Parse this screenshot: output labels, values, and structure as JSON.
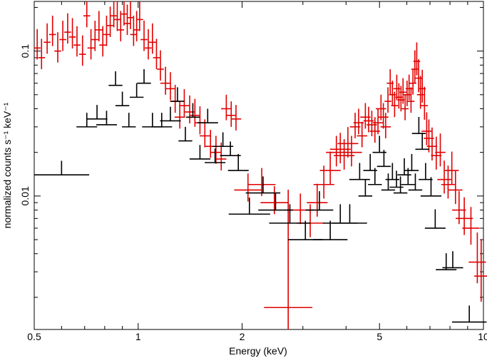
{
  "chart_data": {
    "type": "scatter",
    "title": "",
    "xlabel": "Energy (keV)",
    "ylabel": "normalized counts s⁻¹ keV⁻¹",
    "x_scale": "log",
    "y_scale": "log",
    "xlim": [
      0.5,
      10
    ],
    "ylim": [
      0.0012,
      0.22
    ],
    "grid": false,
    "legend": "none",
    "x_tick_labels": [
      {
        "value": 0.5,
        "label": "0.5"
      },
      {
        "value": 1,
        "label": "1"
      },
      {
        "value": 2,
        "label": "2"
      },
      {
        "value": 5,
        "label": "5"
      },
      {
        "value": 10,
        "label": "10"
      }
    ],
    "y_tick_labels": [
      {
        "value": 0.1,
        "label": "0.1"
      },
      {
        "value": 0.01,
        "label": "0.01"
      }
    ],
    "series": [
      {
        "color": "#e00000",
        "points": [
          [
            0.51,
            0.105,
            0.01,
            1.35,
            1.2
          ],
          [
            0.525,
            0.09,
            0.01,
            1.35,
            1.2
          ],
          [
            0.545,
            0.115,
            0.01,
            1.35,
            1.2
          ],
          [
            0.565,
            0.13,
            0.01,
            1.35,
            1.2
          ],
          [
            0.585,
            0.1,
            0.01,
            1.35,
            1.2
          ],
          [
            0.605,
            0.12,
            0.01,
            1.35,
            1.2
          ],
          [
            0.625,
            0.135,
            0.01,
            1.35,
            1.2
          ],
          [
            0.645,
            0.125,
            0.01,
            1.35,
            1.2
          ],
          [
            0.665,
            0.11,
            0.01,
            1.35,
            1.2
          ],
          [
            0.69,
            0.095,
            0.01,
            1.35,
            1.2
          ],
          [
            0.71,
            0.175,
            0.01,
            1.35,
            1.2
          ],
          [
            0.73,
            0.105,
            0.01,
            1.35,
            1.2
          ],
          [
            0.75,
            0.12,
            0.01,
            1.35,
            1.2
          ],
          [
            0.77,
            0.14,
            0.01,
            1.35,
            1.2
          ],
          [
            0.79,
            0.11,
            0.01,
            1.35,
            1.2
          ],
          [
            0.81,
            0.13,
            0.01,
            1.35,
            1.2
          ],
          [
            0.83,
            0.15,
            0.01,
            1.35,
            1.2
          ],
          [
            0.85,
            0.175,
            0.01,
            1.35,
            1.2
          ],
          [
            0.87,
            0.165,
            0.01,
            1.35,
            1.2
          ],
          [
            0.89,
            0.14,
            0.01,
            1.35,
            1.2
          ],
          [
            0.91,
            0.18,
            0.01,
            1.35,
            1.2
          ],
          [
            0.93,
            0.155,
            0.01,
            1.35,
            1.2
          ],
          [
            0.95,
            0.17,
            0.01,
            1.35,
            1.2
          ],
          [
            0.97,
            0.13,
            0.01,
            1.35,
            1.2
          ],
          [
            0.99,
            0.14,
            0.01,
            1.35,
            1.2
          ],
          [
            1.01,
            0.165,
            0.01,
            1.35,
            1.2
          ],
          [
            1.04,
            0.12,
            0.01,
            1.35,
            1.2
          ],
          [
            1.07,
            0.105,
            0.01,
            1.35,
            1.2
          ],
          [
            1.1,
            0.115,
            0.01,
            1.35,
            1.2
          ],
          [
            1.13,
            0.09,
            0.01,
            1.35,
            1.2
          ],
          [
            1.16,
            0.075,
            0.01,
            1.35,
            1.2
          ],
          [
            1.2,
            0.06,
            0.015,
            1.3,
            1.2
          ],
          [
            1.24,
            0.055,
            0.015,
            1.3,
            1.2
          ],
          [
            1.28,
            0.045,
            0.015,
            1.3,
            1.2
          ],
          [
            1.32,
            0.035,
            0.015,
            1.3,
            1.2
          ],
          [
            1.36,
            0.042,
            0.015,
            1.3,
            1.2
          ],
          [
            1.41,
            0.038,
            0.015,
            1.3,
            1.2
          ],
          [
            1.46,
            0.036,
            0.015,
            1.3,
            1.2
          ],
          [
            1.51,
            0.032,
            0.015,
            1.3,
            1.2
          ],
          [
            1.56,
            0.026,
            0.015,
            1.3,
            1.2
          ],
          [
            1.62,
            0.022,
            0.015,
            1.3,
            1.2
          ],
          [
            1.68,
            0.02,
            0.015,
            1.3,
            1.2
          ],
          [
            1.74,
            0.018,
            0.015,
            1.3,
            1.2
          ],
          [
            1.8,
            0.04,
            0.015,
            1.25,
            1.2
          ],
          [
            1.86,
            0.036,
            0.015,
            1.25,
            1.2
          ],
          [
            1.92,
            0.034,
            0.015,
            1.25,
            1.2
          ],
          [
            2.08,
            0.011,
            0.04,
            1.3,
            1.2
          ],
          [
            2.28,
            0.012,
            0.04,
            1.3,
            1.2
          ],
          [
            2.48,
            0.009,
            0.04,
            1.3,
            1.2
          ],
          [
            2.72,
            0.0017,
            0.07,
            6.5,
            1.55
          ],
          [
            2.95,
            0.008,
            0.04,
            1.3,
            1.25
          ],
          [
            3.15,
            0.0065,
            0.04,
            1.35,
            1.25
          ],
          [
            3.3,
            0.009,
            0.03,
            1.35,
            1.25
          ],
          [
            3.45,
            0.012,
            0.03,
            1.35,
            1.25
          ],
          [
            3.6,
            0.015,
            0.03,
            1.35,
            1.25
          ],
          [
            3.75,
            0.02,
            0.03,
            1.3,
            1.25
          ],
          [
            3.85,
            0.021,
            0.03,
            1.3,
            1.25
          ],
          [
            3.95,
            0.019,
            0.03,
            1.3,
            1.25
          ],
          [
            4.05,
            0.023,
            0.03,
            1.3,
            1.25
          ],
          [
            4.15,
            0.02,
            0.03,
            1.3,
            1.25
          ],
          [
            4.25,
            0.03,
            0.015,
            1.25,
            1.2
          ],
          [
            4.35,
            0.032,
            0.015,
            1.25,
            1.2
          ],
          [
            4.45,
            0.026,
            0.015,
            1.25,
            1.2
          ],
          [
            4.55,
            0.035,
            0.015,
            1.25,
            1.2
          ],
          [
            4.65,
            0.033,
            0.015,
            1.25,
            1.2
          ],
          [
            4.75,
            0.031,
            0.015,
            1.25,
            1.2
          ],
          [
            4.85,
            0.028,
            0.015,
            1.25,
            1.2
          ],
          [
            4.95,
            0.032,
            0.015,
            1.25,
            1.2
          ],
          [
            5.05,
            0.04,
            0.015,
            1.25,
            1.2
          ],
          [
            5.13,
            0.035,
            0.015,
            1.25,
            1.2
          ],
          [
            5.21,
            0.03,
            0.015,
            1.25,
            1.2
          ],
          [
            5.29,
            0.045,
            0.01,
            1.25,
            1.2
          ],
          [
            5.37,
            0.06,
            0.01,
            1.25,
            1.2
          ],
          [
            5.45,
            0.05,
            0.01,
            1.25,
            1.2
          ],
          [
            5.53,
            0.042,
            0.01,
            1.25,
            1.2
          ],
          [
            5.61,
            0.055,
            0.01,
            1.25,
            1.2
          ],
          [
            5.69,
            0.048,
            0.01,
            1.25,
            1.2
          ],
          [
            5.77,
            0.046,
            0.01,
            1.25,
            1.2
          ],
          [
            5.85,
            0.052,
            0.01,
            1.25,
            1.2
          ],
          [
            5.93,
            0.04,
            0.01,
            1.25,
            1.2
          ],
          [
            6.01,
            0.05,
            0.01,
            1.25,
            1.2
          ],
          [
            6.09,
            0.055,
            0.01,
            1.25,
            1.2
          ],
          [
            6.17,
            0.045,
            0.01,
            1.25,
            1.2
          ],
          [
            6.25,
            0.06,
            0.01,
            1.25,
            1.2
          ],
          [
            6.33,
            0.075,
            0.01,
            1.35,
            1.25
          ],
          [
            6.41,
            0.085,
            0.01,
            1.35,
            1.25
          ],
          [
            6.49,
            0.065,
            0.01,
            1.35,
            1.25
          ],
          [
            6.57,
            0.05,
            0.01,
            1.35,
            1.25
          ],
          [
            6.65,
            0.055,
            0.01,
            1.35,
            1.25
          ],
          [
            6.75,
            0.042,
            0.01,
            1.35,
            1.25
          ],
          [
            6.85,
            0.028,
            0.015,
            1.35,
            1.25
          ],
          [
            6.95,
            0.025,
            0.015,
            1.35,
            1.25
          ],
          [
            7.1,
            0.022,
            0.015,
            1.35,
            1.25
          ],
          [
            7.3,
            0.019,
            0.015,
            1.35,
            1.25
          ],
          [
            7.5,
            0.02,
            0.015,
            1.35,
            1.25
          ],
          [
            7.7,
            0.013,
            0.02,
            1.35,
            1.25
          ],
          [
            7.9,
            0.012,
            0.02,
            1.35,
            1.25
          ],
          [
            8.1,
            0.015,
            0.02,
            1.35,
            1.25
          ],
          [
            8.3,
            0.011,
            0.02,
            1.35,
            1.25
          ],
          [
            8.5,
            0.008,
            0.02,
            1.35,
            1.25
          ],
          [
            8.8,
            0.007,
            0.025,
            1.4,
            1.3
          ],
          [
            9.2,
            0.006,
            0.025,
            1.4,
            1.3
          ],
          [
            9.6,
            0.0035,
            0.025,
            1.6,
            1.4
          ],
          [
            9.85,
            0.0028,
            0.02,
            1.8,
            1.5
          ]
        ]
      },
      {
        "color": "#000000",
        "points": [
          [
            0.6,
            0.014,
            0.08,
            1.25,
            1.0
          ],
          [
            0.71,
            0.03,
            0.03,
            1.25,
            1.0
          ],
          [
            0.76,
            0.034,
            0.03,
            1.25,
            1.0
          ],
          [
            0.81,
            0.031,
            0.03,
            1.25,
            1.0
          ],
          [
            0.86,
            0.058,
            0.02,
            1.25,
            1.0
          ],
          [
            0.9,
            0.042,
            0.02,
            1.25,
            1.0
          ],
          [
            0.94,
            0.03,
            0.02,
            1.25,
            1.0
          ],
          [
            0.99,
            0.048,
            0.02,
            1.25,
            1.0
          ],
          [
            1.04,
            0.06,
            0.02,
            1.25,
            1.0
          ],
          [
            1.1,
            0.03,
            0.03,
            1.25,
            1.0
          ],
          [
            1.17,
            0.03,
            0.03,
            1.25,
            1.0
          ],
          [
            1.24,
            0.033,
            0.03,
            1.25,
            1.0
          ],
          [
            1.3,
            0.045,
            0.02,
            1.25,
            1.0
          ],
          [
            1.37,
            0.024,
            0.02,
            1.25,
            1.0
          ],
          [
            1.44,
            0.035,
            0.02,
            1.25,
            1.0
          ],
          [
            1.51,
            0.018,
            0.03,
            1.25,
            1.0
          ],
          [
            1.59,
            0.032,
            0.03,
            1.25,
            1.0
          ],
          [
            1.67,
            0.017,
            0.03,
            1.25,
            1.0
          ],
          [
            1.76,
            0.022,
            0.03,
            1.25,
            1.0
          ],
          [
            1.85,
            0.019,
            0.03,
            1.25,
            1.0
          ],
          [
            1.95,
            0.015,
            0.03,
            1.3,
            1.0
          ],
          [
            2.1,
            0.0075,
            0.06,
            1.3,
            1.0
          ],
          [
            2.3,
            0.0105,
            0.05,
            1.3,
            1.0
          ],
          [
            2.5,
            0.008,
            0.05,
            1.3,
            1.0
          ],
          [
            2.75,
            0.0065,
            0.06,
            1.35,
            1.0
          ],
          [
            3.05,
            0.005,
            0.05,
            1.35,
            1.0
          ],
          [
            3.35,
            0.008,
            0.04,
            1.35,
            1.0
          ],
          [
            3.6,
            0.005,
            0.05,
            1.35,
            1.0
          ],
          [
            3.85,
            0.0065,
            0.05,
            1.35,
            1.0
          ],
          [
            4.1,
            0.0065,
            0.05,
            1.35,
            1.0
          ],
          [
            4.38,
            0.013,
            0.03,
            1.3,
            1.0
          ],
          [
            4.55,
            0.01,
            0.02,
            1.3,
            1.0
          ],
          [
            4.7,
            0.015,
            0.02,
            1.3,
            1.0
          ],
          [
            4.85,
            0.012,
            0.02,
            1.3,
            1.0
          ],
          [
            5.0,
            0.02,
            0.02,
            1.3,
            1.0
          ],
          [
            5.15,
            0.016,
            0.02,
            1.3,
            1.0
          ],
          [
            5.3,
            0.011,
            0.02,
            1.3,
            1.0
          ],
          [
            5.45,
            0.013,
            0.02,
            1.3,
            1.0
          ],
          [
            5.6,
            0.0115,
            0.02,
            1.3,
            1.0
          ],
          [
            5.75,
            0.0105,
            0.02,
            1.3,
            1.0
          ],
          [
            5.9,
            0.014,
            0.02,
            1.3,
            1.0
          ],
          [
            6.05,
            0.012,
            0.02,
            1.3,
            1.0
          ],
          [
            6.2,
            0.015,
            0.02,
            1.3,
            1.0
          ],
          [
            6.35,
            0.011,
            0.02,
            1.3,
            1.0
          ],
          [
            6.5,
            0.027,
            0.02,
            1.3,
            1.0
          ],
          [
            6.65,
            0.021,
            0.02,
            1.3,
            1.0
          ],
          [
            6.8,
            0.013,
            0.02,
            1.3,
            1.0
          ],
          [
            7.05,
            0.01,
            0.03,
            1.35,
            1.0
          ],
          [
            7.25,
            0.006,
            0.03,
            1.35,
            1.0
          ],
          [
            7.8,
            0.0031,
            0.03,
            1.3,
            1.0
          ],
          [
            8.15,
            0.0032,
            0.03,
            1.3,
            1.0
          ],
          [
            9.1,
            0.00135,
            0.05,
            1.3,
            1.0
          ]
        ]
      }
    ]
  }
}
